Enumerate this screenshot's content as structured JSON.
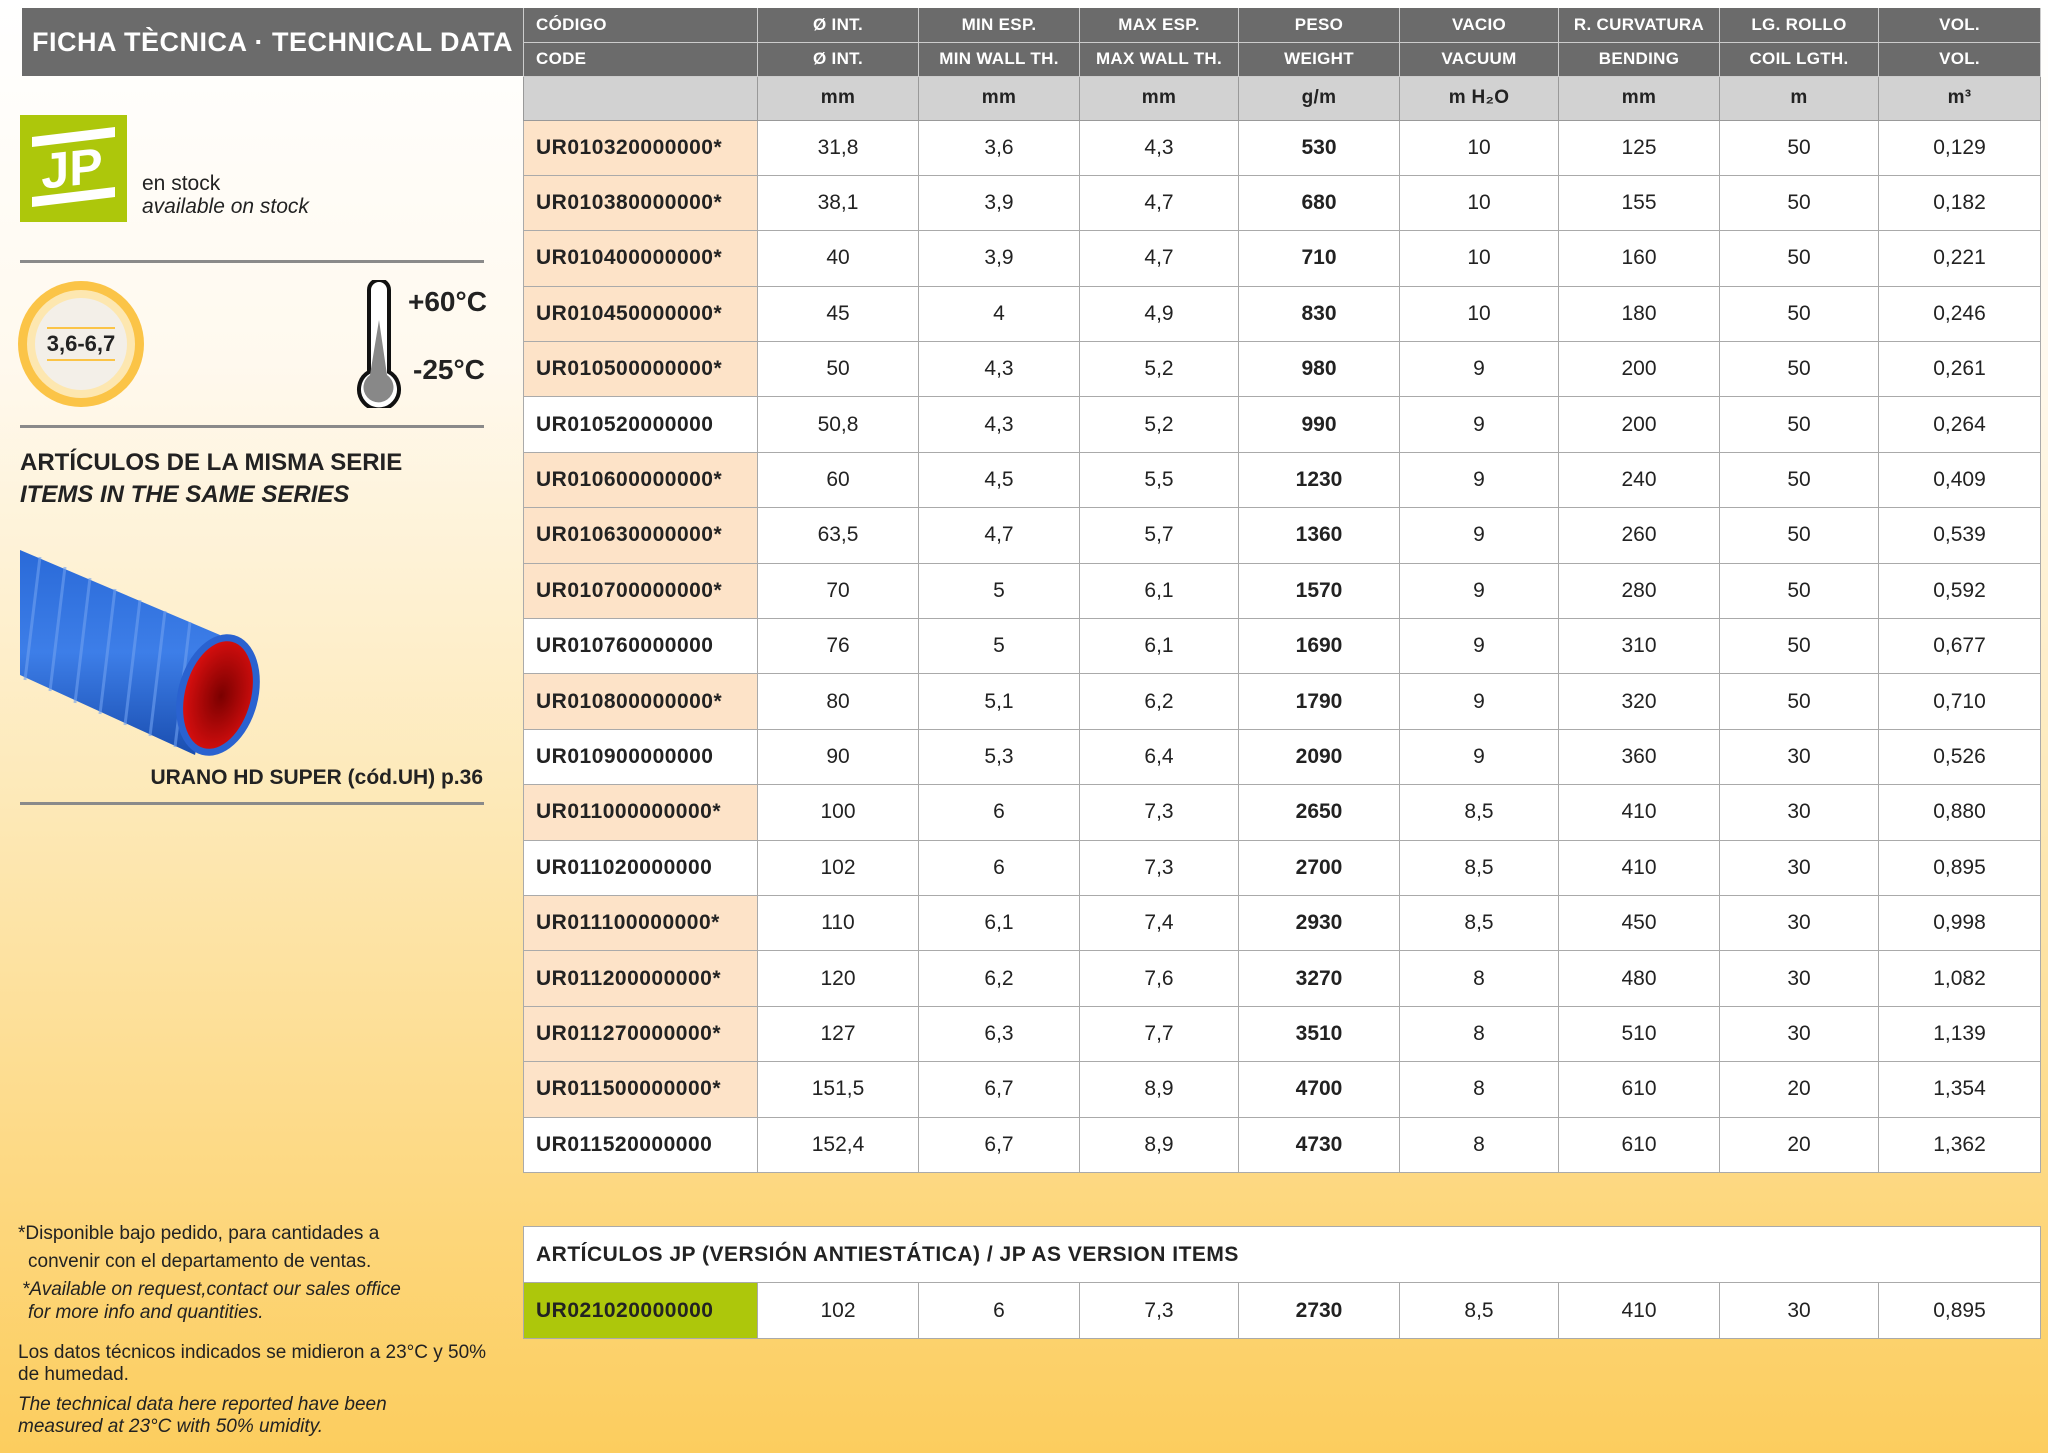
{
  "title": "FICHA TÈCNICA · TECHNICAL DATA",
  "stock": {
    "logo_text": "JP",
    "es": "en stock",
    "en": "available on stock"
  },
  "thickness_badge": "3,6-6,7",
  "temperature": {
    "max": "+60°C",
    "min": "-25°C"
  },
  "series": {
    "heading_es": "ARTÍCULOS DE LA MISMA SERIE",
    "heading_en": "ITEMS IN THE SAME SERIES",
    "caption": "URANO HD SUPER (cód.UH) p.36"
  },
  "colors": {
    "header": "#6b6b6b",
    "units_row": "#d2d2d2",
    "on_order": "#fde3c8",
    "jp_green": "#adc70b",
    "hose_blue": "#1f5fc8",
    "hose_red": "#d01010"
  },
  "table": {
    "headers_es": [
      "CÓDIGO",
      "Ø INT.",
      "MIN ESP.",
      "MAX ESP.",
      "PESO",
      "VACIO",
      "R. CURVATURA",
      "LG. ROLLO",
      "VOL."
    ],
    "headers_en": [
      "CODE",
      "Ø INT.",
      "MIN WALL TH.",
      "MAX WALL TH.",
      "WEIGHT",
      "VACUUM",
      "BENDING",
      "COIL LGTH.",
      "VOL."
    ],
    "units": [
      "",
      "mm",
      "mm",
      "mm",
      "g/m",
      "m H₂O",
      "mm",
      "m",
      "m³"
    ],
    "rows": [
      [
        "UR010320000000*",
        "31,8",
        "3,6",
        "4,3",
        "530",
        "10",
        "125",
        "50",
        "0,129"
      ],
      [
        "UR010380000000*",
        "38,1",
        "3,9",
        "4,7",
        "680",
        "10",
        "155",
        "50",
        "0,182"
      ],
      [
        "UR010400000000*",
        "40",
        "3,9",
        "4,7",
        "710",
        "10",
        "160",
        "50",
        "0,221"
      ],
      [
        "UR010450000000*",
        "45",
        "4",
        "4,9",
        "830",
        "10",
        "180",
        "50",
        "0,246"
      ],
      [
        "UR010500000000*",
        "50",
        "4,3",
        "5,2",
        "980",
        "9",
        "200",
        "50",
        "0,261"
      ],
      [
        "UR010520000000",
        "50,8",
        "4,3",
        "5,2",
        "990",
        "9",
        "200",
        "50",
        "0,264"
      ],
      [
        "UR010600000000*",
        "60",
        "4,5",
        "5,5",
        "1230",
        "9",
        "240",
        "50",
        "0,409"
      ],
      [
        "UR010630000000*",
        "63,5",
        "4,7",
        "5,7",
        "1360",
        "9",
        "260",
        "50",
        "0,539"
      ],
      [
        "UR010700000000*",
        "70",
        "5",
        "6,1",
        "1570",
        "9",
        "280",
        "50",
        "0,592"
      ],
      [
        "UR010760000000",
        "76",
        "5",
        "6,1",
        "1690",
        "9",
        "310",
        "50",
        "0,677"
      ],
      [
        "UR010800000000*",
        "80",
        "5,1",
        "6,2",
        "1790",
        "9",
        "320",
        "50",
        "0,710"
      ],
      [
        "UR010900000000",
        "90",
        "5,3",
        "6,4",
        "2090",
        "9",
        "360",
        "30",
        "0,526"
      ],
      [
        "UR011000000000*",
        "100",
        "6",
        "7,3",
        "2650",
        "8,5",
        "410",
        "30",
        "0,880"
      ],
      [
        "UR011020000000",
        "102",
        "6",
        "7,3",
        "2700",
        "8,5",
        "410",
        "30",
        "0,895"
      ],
      [
        "UR011100000000*",
        "110",
        "6,1",
        "7,4",
        "2930",
        "8,5",
        "450",
        "30",
        "0,998"
      ],
      [
        "UR011200000000*",
        "120",
        "6,2",
        "7,6",
        "3270",
        "8",
        "480",
        "30",
        "1,082"
      ],
      [
        "UR011270000000*",
        "127",
        "6,3",
        "7,7",
        "3510",
        "8",
        "510",
        "30",
        "1,139"
      ],
      [
        "UR011500000000*",
        "151,5",
        "6,7",
        "8,9",
        "4700",
        "8",
        "610",
        "20",
        "1,354"
      ],
      [
        "UR011520000000",
        "152,4",
        "6,7",
        "8,9",
        "4730",
        "8",
        "610",
        "20",
        "1,362"
      ]
    ]
  },
  "jp_table": {
    "title": "ARTÍCULOS JP (VERSIÓN ANTIESTÁTICA) / JP AS VERSION ITEMS",
    "row": [
      "UR021020000000",
      "102",
      "6",
      "7,3",
      "2730",
      "8,5",
      "410",
      "30",
      "0,895"
    ]
  },
  "footnotes": {
    "order_es_1": "*Disponible bajo pedido, para cantidades a",
    "order_es_2": "convenir con el departamento de ventas.",
    "order_en_1": "*Available on request,contact our sales office",
    "order_en_2": "for more info and quantities.",
    "conditions_es": "Los datos técnicos indicados se midieron a 23°C y 50% de humedad.",
    "conditions_en": "The technical data here reported have been measured at 23°C with 50% umidity."
  }
}
